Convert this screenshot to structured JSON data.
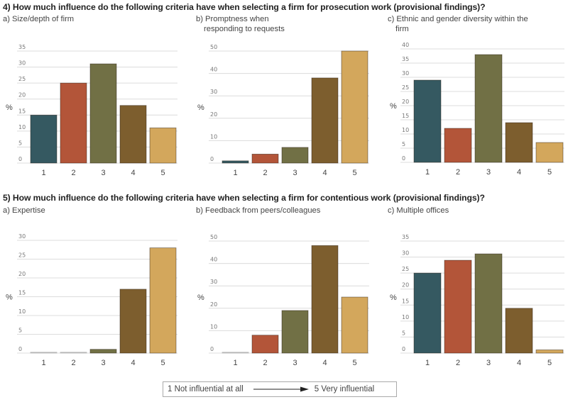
{
  "questions": [
    {
      "title": "4) How much influence do the following criteria have when selecting a firm for prosecution work (provisional findings)?"
    },
    {
      "title": "5) How much influence do the following criteria have when selecting a firm for contentious work (provisional findings)?"
    }
  ],
  "legend": {
    "left": "1 Not influential at all",
    "right": "5 Very influential",
    "arrow_icon": "arrow-right-icon"
  },
  "colors": [
    "#355961",
    "#b35539",
    "#717045",
    "#7d5e2e",
    "#d3a75c"
  ],
  "chart_data": [
    {
      "type": "bar",
      "title": "a) Size/depth of firm",
      "question": "4",
      "categories": [
        "1",
        "2",
        "3",
        "4",
        "5"
      ],
      "values": [
        15,
        25,
        31,
        18,
        11
      ],
      "ylabel": "%",
      "xlabel": "",
      "ylim": [
        0,
        35
      ],
      "yticks": [
        0,
        5,
        10,
        15,
        20,
        25,
        30,
        35
      ],
      "grid": true
    },
    {
      "type": "bar",
      "title": "b) Promptness when responding to requests",
      "question": "4",
      "categories": [
        "1",
        "2",
        "3",
        "4",
        "5"
      ],
      "values": [
        1,
        4,
        7,
        38,
        50
      ],
      "ylabel": "%",
      "xlabel": "",
      "ylim": [
        0,
        50
      ],
      "yticks": [
        0,
        10,
        20,
        30,
        40,
        50
      ],
      "grid": true
    },
    {
      "type": "bar",
      "title": "c) Ethnic and gender diversity within the firm",
      "question": "4",
      "categories": [
        "1",
        "2",
        "3",
        "4",
        "5"
      ],
      "values": [
        29,
        12,
        38,
        14,
        7
      ],
      "ylabel": "%",
      "xlabel": "",
      "ylim": [
        0,
        40
      ],
      "yticks": [
        0,
        5,
        10,
        15,
        20,
        25,
        30,
        35,
        40
      ],
      "grid": true
    },
    {
      "type": "bar",
      "title": "a) Expertise",
      "question": "5",
      "categories": [
        "1",
        "2",
        "3",
        "4",
        "5"
      ],
      "values": [
        0,
        0,
        1,
        17,
        28
      ],
      "ylabel": "%",
      "xlabel": "",
      "ylim": [
        0,
        30
      ],
      "yticks": [
        0,
        5,
        10,
        15,
        20,
        25,
        30
      ],
      "grid": true
    },
    {
      "type": "bar",
      "title": "b) Feedback from peers/colleagues",
      "question": "5",
      "categories": [
        "1",
        "2",
        "3",
        "4",
        "5"
      ],
      "values": [
        0,
        8,
        19,
        48,
        25
      ],
      "ylabel": "%",
      "xlabel": "",
      "ylim": [
        0,
        50
      ],
      "yticks": [
        0,
        10,
        20,
        30,
        40,
        50
      ],
      "grid": true
    },
    {
      "type": "bar",
      "title": "c) Multiple offices",
      "question": "5",
      "categories": [
        "1",
        "2",
        "3",
        "4",
        "5"
      ],
      "values": [
        25,
        29,
        31,
        14,
        1
      ],
      "ylabel": "%",
      "xlabel": "",
      "ylim": [
        0,
        35
      ],
      "yticks": [
        0,
        5,
        10,
        15,
        20,
        25,
        30,
        35
      ],
      "grid": true
    }
  ]
}
